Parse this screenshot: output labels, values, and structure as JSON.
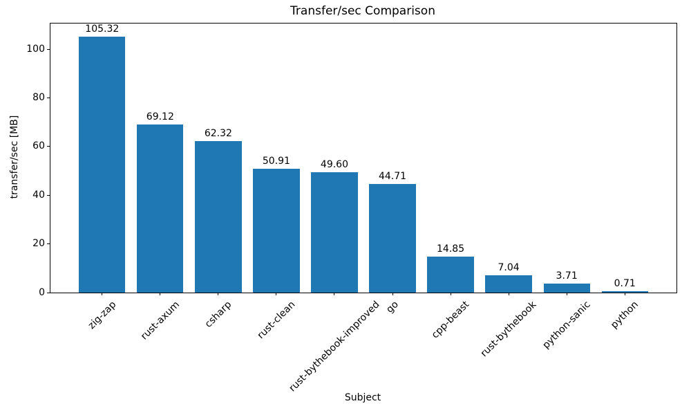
{
  "chart_data": {
    "type": "bar",
    "title": "Transfer/sec Comparison",
    "xlabel": "Subject",
    "ylabel": "transfer/sec [MB]",
    "categories": [
      "zig-zap",
      "rust-axum",
      "csharp",
      "rust-clean",
      "rust-bythebook-improved",
      "go",
      "cpp-beast",
      "rust-bythebook",
      "python-sanic",
      "python"
    ],
    "values": [
      105.32,
      69.12,
      62.32,
      50.91,
      49.6,
      44.71,
      14.85,
      7.04,
      3.71,
      0.71
    ],
    "value_labels": [
      "105.32",
      "69.12",
      "62.32",
      "50.91",
      "49.60",
      "44.71",
      "14.85",
      "7.04",
      "3.71",
      "0.71"
    ],
    "yticks": [
      0,
      20,
      40,
      60,
      80,
      100
    ],
    "ylim": [
      0,
      110.6
    ],
    "bar_color": "#1f77b4",
    "grid": false,
    "legend": "none",
    "x_tick_rotation_deg": 45
  }
}
